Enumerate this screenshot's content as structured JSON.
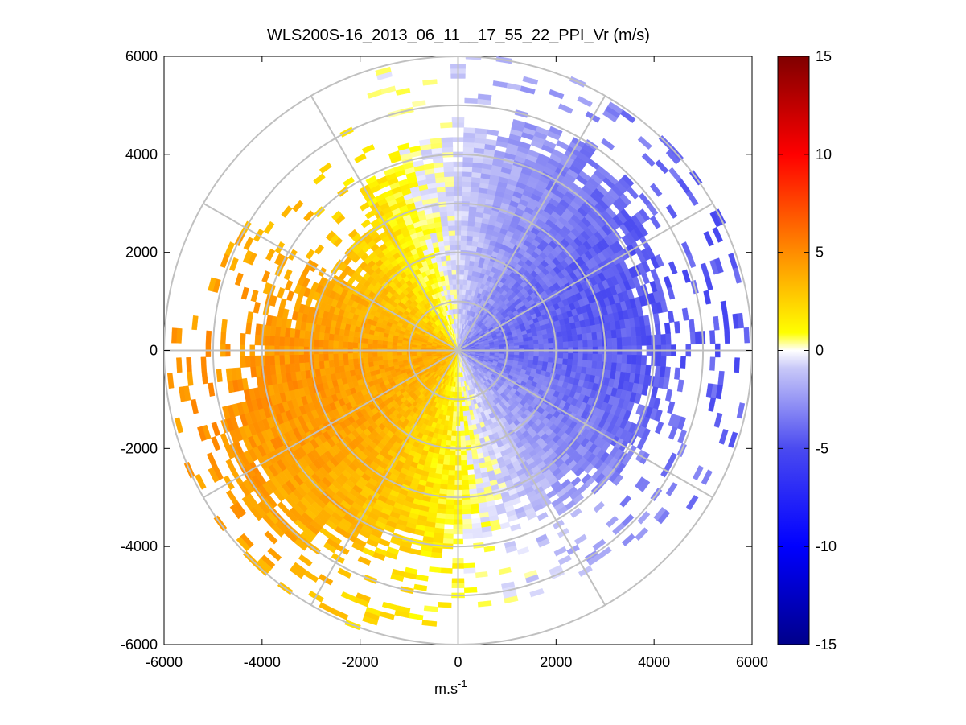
{
  "chart_data": {
    "type": "heatmap",
    "subtype": "polar-ppi",
    "title": "WLS200S-16_2013_06_11__17_55_22_PPI_Vr (m/s)",
    "xlabel_main": "m.s",
    "xlabel_sup": "-1",
    "ylabel": "",
    "xlim": [
      -6000,
      6000
    ],
    "ylim": [
      -6000,
      6000
    ],
    "x_ticks": [
      "-6000",
      "-4000",
      "-2000",
      "0",
      "2000",
      "4000",
      "6000"
    ],
    "y_ticks": [
      "6000",
      "4000",
      "2000",
      "0",
      "-2000",
      "-4000",
      "-6000"
    ],
    "x_tick_values": [
      -6000,
      -4000,
      -2000,
      0,
      2000,
      4000,
      6000
    ],
    "y_tick_values": [
      6000,
      4000,
      2000,
      0,
      -2000,
      -4000,
      -6000
    ],
    "range_rings_m": [
      1000,
      2000,
      3000,
      4000,
      5000,
      6000
    ],
    "spoke_step_deg": 30,
    "colorbar": {
      "min": -15,
      "max": 15,
      "ticks": [
        "15",
        "10",
        "5",
        "0",
        "-5",
        "-10",
        "-15"
      ],
      "tick_values": [
        15,
        10,
        5,
        0,
        -5,
        -10,
        -15
      ]
    },
    "field": {
      "description": "Radial velocity, roughly sinusoidal in azimuth",
      "azimuth_step_deg": 3,
      "range_gate_m": 100,
      "min_range_m": 50,
      "max_range_m": 6000,
      "positive_max_ms": 4.5,
      "negative_max_ms": -5,
      "zero_crossing_azimuths_deg": [
        0,
        160
      ],
      "sectors": [
        {
          "az_from_deg": 0,
          "az_to_deg": 160,
          "sign": "negative",
          "peak_az_deg": 80,
          "peak_ms": -5
        },
        {
          "az_from_deg": 160,
          "az_to_deg": 360,
          "sign": "positive",
          "peak_az_deg": 250,
          "peak_ms": 4.5
        }
      ]
    }
  }
}
